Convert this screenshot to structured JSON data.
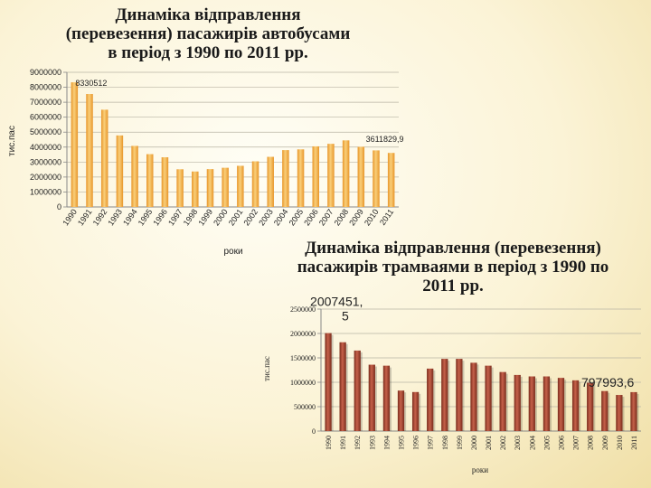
{
  "slide": {
    "background_color": "#fbf3d6"
  },
  "chart_data": [
    {
      "type": "bar",
      "title": "Динаміка відправлення (перевезення) пасажирів автобусами в період з 1990 по 2011 рр.",
      "xlabel": "роки",
      "ylabel": "тис.пас",
      "ylim": [
        0,
        9000000
      ],
      "yticks": [
        "0",
        "1000000",
        "2000000",
        "3000000",
        "4000000",
        "5000000",
        "6000000",
        "7000000",
        "8000000",
        "9000000"
      ],
      "grid": true,
      "color": "#f0a830",
      "categories": [
        "1990",
        "1991",
        "1992",
        "1993",
        "1994",
        "1995",
        "1996",
        "1997",
        "1998",
        "1999",
        "2000",
        "2001",
        "2002",
        "2003",
        "2004",
        "2005",
        "2006",
        "2007",
        "2008",
        "2009",
        "2010",
        "2011"
      ],
      "values": [
        8330512,
        7550000,
        6500000,
        4780000,
        4080000,
        3530000,
        3320000,
        2520000,
        2370000,
        2530000,
        2620000,
        2750000,
        3050000,
        3350000,
        3800000,
        3850000,
        4050000,
        4220000,
        4450000,
        4020000,
        3780000,
        3611829.9
      ],
      "data_labels": [
        {
          "index": 0,
          "text": "8330512"
        },
        {
          "index": 21,
          "text": "3611829,9"
        }
      ]
    },
    {
      "type": "bar",
      "title": "Динаміка відправлення (перевезення) пасажирів трамваями в період з 1990 по 2011 рр.",
      "xlabel": "роки",
      "ylabel": "тис.пас",
      "ylim": [
        0,
        2500000
      ],
      "yticks": [
        "0",
        "500000",
        "1000000",
        "1500000",
        "2000000",
        "2500000"
      ],
      "grid": true,
      "color": "#9a4028",
      "categories": [
        "1990",
        "1991",
        "1992",
        "1993",
        "1994",
        "1995",
        "1996",
        "1997",
        "1998",
        "1999",
        "2000",
        "2001",
        "2002",
        "2003",
        "2004",
        "2005",
        "2006",
        "2007",
        "2008",
        "2009",
        "2010",
        "2011"
      ],
      "values": [
        2007451.5,
        1820000,
        1650000,
        1360000,
        1340000,
        830000,
        800000,
        1280000,
        1480000,
        1480000,
        1400000,
        1340000,
        1210000,
        1150000,
        1120000,
        1120000,
        1090000,
        1040000,
        990000,
        820000,
        740000,
        797993.6
      ],
      "data_labels": [
        {
          "index": 0,
          "lines": [
            "2007451,",
            "5"
          ]
        },
        {
          "index": 21,
          "text": "797993,6"
        }
      ]
    }
  ]
}
